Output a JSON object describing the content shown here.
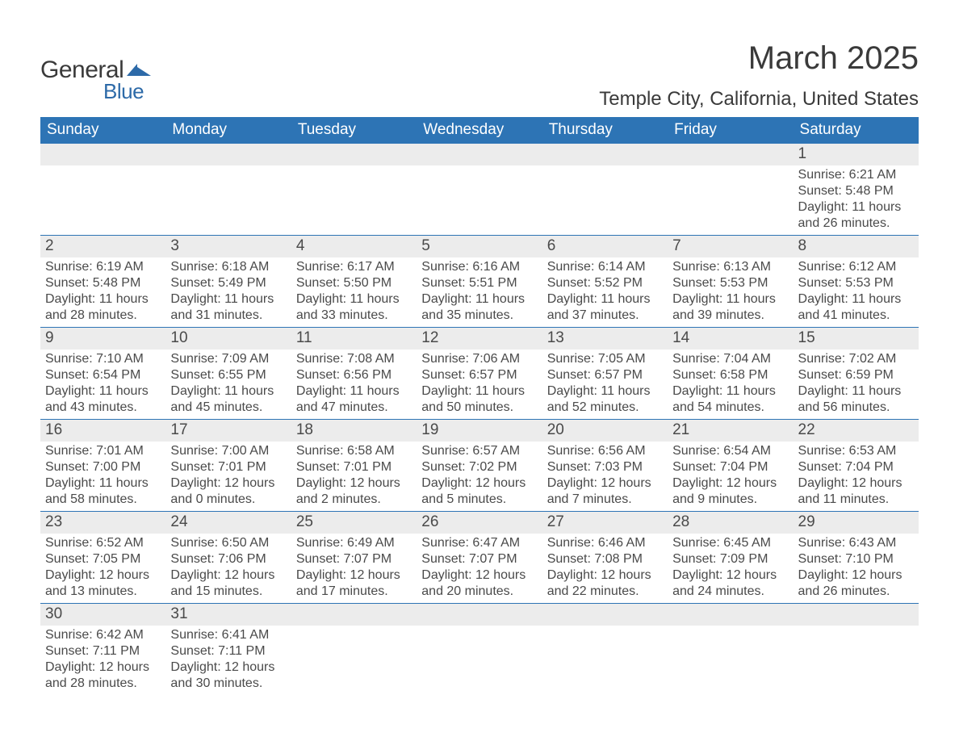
{
  "logo": {
    "word1": "General",
    "word2": "Blue",
    "mark_color": "#2d6aa8"
  },
  "title": "March 2025",
  "location": "Temple City, California, United States",
  "header_bg": "#2d74b5",
  "header_fg": "#ffffff",
  "row_divider": "#2d74b5",
  "daynum_bg": "#ececec",
  "text_color": "#4a4a4a",
  "day_headers": [
    "Sunday",
    "Monday",
    "Tuesday",
    "Wednesday",
    "Thursday",
    "Friday",
    "Saturday"
  ],
  "weeks": [
    [
      null,
      null,
      null,
      null,
      null,
      null,
      {
        "n": "1",
        "sunrise": "6:21 AM",
        "sunset": "5:48 PM",
        "day_h": "11",
        "day_m": "26"
      }
    ],
    [
      {
        "n": "2",
        "sunrise": "6:19 AM",
        "sunset": "5:48 PM",
        "day_h": "11",
        "day_m": "28"
      },
      {
        "n": "3",
        "sunrise": "6:18 AM",
        "sunset": "5:49 PM",
        "day_h": "11",
        "day_m": "31"
      },
      {
        "n": "4",
        "sunrise": "6:17 AM",
        "sunset": "5:50 PM",
        "day_h": "11",
        "day_m": "33"
      },
      {
        "n": "5",
        "sunrise": "6:16 AM",
        "sunset": "5:51 PM",
        "day_h": "11",
        "day_m": "35"
      },
      {
        "n": "6",
        "sunrise": "6:14 AM",
        "sunset": "5:52 PM",
        "day_h": "11",
        "day_m": "37"
      },
      {
        "n": "7",
        "sunrise": "6:13 AM",
        "sunset": "5:53 PM",
        "day_h": "11",
        "day_m": "39"
      },
      {
        "n": "8",
        "sunrise": "6:12 AM",
        "sunset": "5:53 PM",
        "day_h": "11",
        "day_m": "41"
      }
    ],
    [
      {
        "n": "9",
        "sunrise": "7:10 AM",
        "sunset": "6:54 PM",
        "day_h": "11",
        "day_m": "43"
      },
      {
        "n": "10",
        "sunrise": "7:09 AM",
        "sunset": "6:55 PM",
        "day_h": "11",
        "day_m": "45"
      },
      {
        "n": "11",
        "sunrise": "7:08 AM",
        "sunset": "6:56 PM",
        "day_h": "11",
        "day_m": "47"
      },
      {
        "n": "12",
        "sunrise": "7:06 AM",
        "sunset": "6:57 PM",
        "day_h": "11",
        "day_m": "50"
      },
      {
        "n": "13",
        "sunrise": "7:05 AM",
        "sunset": "6:57 PM",
        "day_h": "11",
        "day_m": "52"
      },
      {
        "n": "14",
        "sunrise": "7:04 AM",
        "sunset": "6:58 PM",
        "day_h": "11",
        "day_m": "54"
      },
      {
        "n": "15",
        "sunrise": "7:02 AM",
        "sunset": "6:59 PM",
        "day_h": "11",
        "day_m": "56"
      }
    ],
    [
      {
        "n": "16",
        "sunrise": "7:01 AM",
        "sunset": "7:00 PM",
        "day_h": "11",
        "day_m": "58"
      },
      {
        "n": "17",
        "sunrise": "7:00 AM",
        "sunset": "7:01 PM",
        "day_h": "12",
        "day_m": "0"
      },
      {
        "n": "18",
        "sunrise": "6:58 AM",
        "sunset": "7:01 PM",
        "day_h": "12",
        "day_m": "2"
      },
      {
        "n": "19",
        "sunrise": "6:57 AM",
        "sunset": "7:02 PM",
        "day_h": "12",
        "day_m": "5"
      },
      {
        "n": "20",
        "sunrise": "6:56 AM",
        "sunset": "7:03 PM",
        "day_h": "12",
        "day_m": "7"
      },
      {
        "n": "21",
        "sunrise": "6:54 AM",
        "sunset": "7:04 PM",
        "day_h": "12",
        "day_m": "9"
      },
      {
        "n": "22",
        "sunrise": "6:53 AM",
        "sunset": "7:04 PM",
        "day_h": "12",
        "day_m": "11"
      }
    ],
    [
      {
        "n": "23",
        "sunrise": "6:52 AM",
        "sunset": "7:05 PM",
        "day_h": "12",
        "day_m": "13"
      },
      {
        "n": "24",
        "sunrise": "6:50 AM",
        "sunset": "7:06 PM",
        "day_h": "12",
        "day_m": "15"
      },
      {
        "n": "25",
        "sunrise": "6:49 AM",
        "sunset": "7:07 PM",
        "day_h": "12",
        "day_m": "17"
      },
      {
        "n": "26",
        "sunrise": "6:47 AM",
        "sunset": "7:07 PM",
        "day_h": "12",
        "day_m": "20"
      },
      {
        "n": "27",
        "sunrise": "6:46 AM",
        "sunset": "7:08 PM",
        "day_h": "12",
        "day_m": "22"
      },
      {
        "n": "28",
        "sunrise": "6:45 AM",
        "sunset": "7:09 PM",
        "day_h": "12",
        "day_m": "24"
      },
      {
        "n": "29",
        "sunrise": "6:43 AM",
        "sunset": "7:10 PM",
        "day_h": "12",
        "day_m": "26"
      }
    ],
    [
      {
        "n": "30",
        "sunrise": "6:42 AM",
        "sunset": "7:11 PM",
        "day_h": "12",
        "day_m": "28"
      },
      {
        "n": "31",
        "sunrise": "6:41 AM",
        "sunset": "7:11 PM",
        "day_h": "12",
        "day_m": "30"
      },
      null,
      null,
      null,
      null,
      null
    ]
  ],
  "labels": {
    "sunrise": "Sunrise: ",
    "sunset": "Sunset: ",
    "daylight_pre": "Daylight: ",
    "hours": " hours",
    "and": "and ",
    "minutes": " minutes."
  }
}
